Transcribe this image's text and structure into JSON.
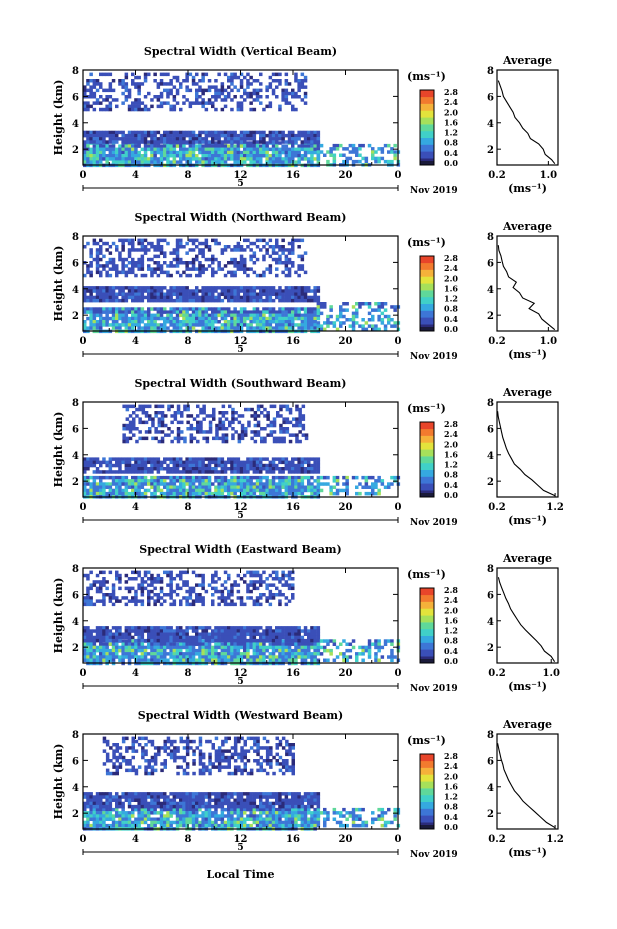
{
  "chart_data": [
    {
      "type": "heatmap",
      "title": "Spectral Width (Vertical Beam)",
      "ylabel": "Height (km)",
      "xlim": [
        0,
        24
      ],
      "ylim": [
        0.8,
        8
      ],
      "x_ticks": [
        "0",
        "4",
        "8",
        "12",
        "16",
        "20",
        "0"
      ],
      "y_ticks": [
        "2",
        "4",
        "6",
        "8"
      ],
      "date_mark": "5",
      "date_label": "Nov 2019",
      "colorbar": {
        "unit": "(ms⁻¹)",
        "ticks": [
          "0.0",
          "0.4",
          "0.8",
          "1.2",
          "1.6",
          "2.0",
          "2.4",
          "2.8"
        ]
      },
      "layers": [
        {
          "x": [
            0,
            17.8
          ],
          "y": [
            0.9,
            2.6
          ],
          "level": "mid"
        },
        {
          "x": [
            0,
            17.8
          ],
          "y": [
            2.6,
            3.4
          ],
          "level": "low"
        },
        {
          "x": [
            17.8,
            24
          ],
          "y": [
            0.9,
            2.4
          ],
          "level": "mid",
          "sparse": true
        },
        {
          "x": [
            0,
            17
          ],
          "y": [
            5.0,
            7.8
          ],
          "level": "low",
          "sparse": true
        }
      ],
      "profile": {
        "title": "Average",
        "xlabel": "(ms⁻¹)",
        "xticks": [
          "0.2",
          "1.0"
        ],
        "xlim": [
          0.2,
          1.15
        ],
        "yticks": [
          "2",
          "4",
          "6",
          "8"
        ],
        "heights": [
          0.9,
          1.2,
          1.6,
          2.0,
          2.4,
          2.8,
          3.2,
          3.6,
          4.0,
          4.4,
          4.8,
          5.2,
          5.6,
          6.0,
          6.4,
          6.8,
          7.2
        ],
        "values": [
          1.1,
          1.05,
          0.95,
          0.92,
          0.85,
          0.72,
          0.68,
          0.6,
          0.55,
          0.48,
          0.45,
          0.4,
          0.35,
          0.3,
          0.28,
          0.25,
          0.22
        ]
      }
    },
    {
      "type": "heatmap",
      "title": "Spectral Width (Northward Beam)",
      "ylabel": "Height (km)",
      "xlim": [
        0,
        24
      ],
      "ylim": [
        0.8,
        8
      ],
      "x_ticks": [
        "0",
        "4",
        "8",
        "12",
        "16",
        "20",
        "0"
      ],
      "y_ticks": [
        "2",
        "4",
        "6",
        "8"
      ],
      "date_mark": "5",
      "date_label": "Nov 2019",
      "colorbar": {
        "unit": "(ms⁻¹)",
        "ticks": [
          "0.0",
          "0.4",
          "0.8",
          "1.2",
          "1.6",
          "2.0",
          "2.4",
          "2.8"
        ]
      },
      "layers": [
        {
          "x": [
            0,
            17.8
          ],
          "y": [
            0.9,
            2.6
          ],
          "level": "mid"
        },
        {
          "x": [
            0,
            17.8
          ],
          "y": [
            3.0,
            4.2
          ],
          "level": "low"
        },
        {
          "x": [
            17.8,
            24
          ],
          "y": [
            1.0,
            3.0
          ],
          "level": "mid",
          "sparse": true
        },
        {
          "x": [
            0,
            17
          ],
          "y": [
            5.0,
            7.8
          ],
          "level": "low",
          "sparse": true
        }
      ],
      "profile": {
        "title": "Average",
        "xlabel": "(ms⁻¹)",
        "xticks": [
          "0.2",
          "1.0"
        ],
        "xlim": [
          0.2,
          1.15
        ],
        "yticks": [
          "2",
          "4",
          "6",
          "8"
        ],
        "heights": [
          0.9,
          1.3,
          1.7,
          2.1,
          2.5,
          2.9,
          3.3,
          3.7,
          4.1,
          4.5,
          4.9,
          5.3,
          5.7,
          6.1,
          6.5,
          6.9,
          7.3
        ],
        "values": [
          1.1,
          1.0,
          0.9,
          0.85,
          0.7,
          0.78,
          0.6,
          0.55,
          0.45,
          0.5,
          0.38,
          0.35,
          0.3,
          0.28,
          0.26,
          0.23,
          0.22
        ]
      }
    },
    {
      "type": "heatmap",
      "title": "Spectral Width (Southward Beam)",
      "ylabel": "Height (km)",
      "xlim": [
        0,
        24
      ],
      "ylim": [
        0.8,
        8
      ],
      "x_ticks": [
        "0",
        "4",
        "8",
        "12",
        "16",
        "20",
        "0"
      ],
      "y_ticks": [
        "2",
        "4",
        "6",
        "8"
      ],
      "date_mark": "5",
      "date_label": "Nov 2019",
      "colorbar": {
        "unit": "(ms⁻¹)",
        "ticks": [
          "0.0",
          "0.4",
          "0.8",
          "1.2",
          "1.6",
          "2.0",
          "2.4",
          "2.8"
        ]
      },
      "layers": [
        {
          "x": [
            0,
            17.8
          ],
          "y": [
            0.9,
            2.4
          ],
          "level": "mid"
        },
        {
          "x": [
            0,
            17.8
          ],
          "y": [
            2.8,
            3.8
          ],
          "level": "low"
        },
        {
          "x": [
            17.8,
            24
          ],
          "y": [
            1.0,
            2.4
          ],
          "level": "mid",
          "sparse": true
        },
        {
          "x": [
            3,
            17
          ],
          "y": [
            5.0,
            7.8
          ],
          "level": "low",
          "sparse": true
        }
      ],
      "profile": {
        "title": "Average",
        "xlabel": "(ms⁻¹)",
        "xticks": [
          "0.2",
          "1.2"
        ],
        "xlim": [
          0.2,
          1.25
        ],
        "yticks": [
          "2",
          "4",
          "6",
          "8"
        ],
        "heights": [
          0.9,
          1.3,
          1.7,
          2.1,
          2.5,
          2.9,
          3.3,
          3.7,
          4.1,
          4.5,
          4.9,
          5.3,
          5.7,
          6.1,
          6.5,
          6.9,
          7.3
        ],
        "values": [
          1.2,
          1.0,
          0.9,
          0.8,
          0.68,
          0.6,
          0.5,
          0.45,
          0.4,
          0.36,
          0.33,
          0.3,
          0.28,
          0.26,
          0.24,
          0.22,
          0.21
        ]
      }
    },
    {
      "type": "heatmap",
      "title": "Spectral Width (Eastward Beam)",
      "ylabel": "Height (km)",
      "xlim": [
        0,
        24
      ],
      "ylim": [
        0.8,
        8
      ],
      "x_ticks": [
        "0",
        "4",
        "8",
        "12",
        "16",
        "20",
        "0"
      ],
      "y_ticks": [
        "2",
        "4",
        "6",
        "8"
      ],
      "date_mark": "5",
      "date_label": "Nov 2019",
      "colorbar": {
        "unit": "(ms⁻¹)",
        "ticks": [
          "0.0",
          "0.4",
          "0.8",
          "1.2",
          "1.6",
          "2.0",
          "2.4",
          "2.8"
        ]
      },
      "layers": [
        {
          "x": [
            0,
            17.8
          ],
          "y": [
            0.9,
            2.6
          ],
          "level": "mid"
        },
        {
          "x": [
            0,
            17.8
          ],
          "y": [
            2.6,
            3.6
          ],
          "level": "low"
        },
        {
          "x": [
            17.8,
            24
          ],
          "y": [
            1.0,
            2.6
          ],
          "level": "mid",
          "sparse": true
        },
        {
          "x": [
            0,
            16
          ],
          "y": [
            5.2,
            7.8
          ],
          "level": "low",
          "sparse": true
        }
      ],
      "profile": {
        "title": "Average",
        "xlabel": "(ms⁻¹)",
        "xticks": [
          "0.2",
          "1.0"
        ],
        "xlim": [
          0.2,
          1.1
        ],
        "yticks": [
          "2",
          "4",
          "6",
          "8"
        ],
        "heights": [
          0.9,
          1.3,
          1.7,
          2.1,
          2.5,
          2.9,
          3.3,
          3.7,
          4.1,
          4.5,
          4.9,
          5.3,
          5.7,
          6.1,
          6.5,
          6.9,
          7.3
        ],
        "values": [
          1.05,
          1.0,
          0.9,
          0.85,
          0.78,
          0.7,
          0.62,
          0.55,
          0.5,
          0.45,
          0.4,
          0.37,
          0.33,
          0.3,
          0.27,
          0.24,
          0.22
        ]
      }
    },
    {
      "type": "heatmap",
      "title": "Spectral Width (Westward Beam)",
      "ylabel": "Height (km)",
      "xlim": [
        0,
        24
      ],
      "ylim": [
        0.8,
        8
      ],
      "x_ticks": [
        "0",
        "4",
        "8",
        "12",
        "16",
        "20",
        "0"
      ],
      "y_ticks": [
        "2",
        "4",
        "6",
        "8"
      ],
      "date_mark": "5",
      "date_label": "Nov 2019",
      "colorbar": {
        "unit": "(ms⁻¹)",
        "ticks": [
          "0.0",
          "0.4",
          "0.8",
          "1.2",
          "1.6",
          "2.0",
          "2.4",
          "2.8"
        ]
      },
      "layers": [
        {
          "x": [
            0,
            17.8
          ],
          "y": [
            0.9,
            2.4
          ],
          "level": "mid"
        },
        {
          "x": [
            0,
            17.8
          ],
          "y": [
            2.6,
            3.6
          ],
          "level": "low"
        },
        {
          "x": [
            17.8,
            24
          ],
          "y": [
            1.0,
            2.4
          ],
          "level": "mid",
          "sparse": true
        },
        {
          "x": [
            1.5,
            16
          ],
          "y": [
            5.0,
            7.8
          ],
          "level": "low",
          "sparse": true
        }
      ],
      "profile": {
        "title": "Average",
        "xlabel": "(ms⁻¹)",
        "xticks": [
          "0.2",
          "1.2"
        ],
        "xlim": [
          0.2,
          1.25
        ],
        "yticks": [
          "2",
          "4",
          "6",
          "8"
        ],
        "heights": [
          0.9,
          1.3,
          1.7,
          2.1,
          2.5,
          2.9,
          3.3,
          3.7,
          4.1,
          4.5,
          4.9,
          5.3,
          5.7,
          6.1,
          6.5,
          6.9,
          7.3
        ],
        "values": [
          1.2,
          1.05,
          0.95,
          0.85,
          0.75,
          0.65,
          0.58,
          0.5,
          0.45,
          0.4,
          0.36,
          0.32,
          0.3,
          0.27,
          0.25,
          0.23,
          0.21
        ]
      }
    }
  ],
  "shared_xlabel": "Local Time",
  "palette": [
    "#2b2b7a",
    "#3a4fb8",
    "#3d76d6",
    "#35a9e0",
    "#40d0c8",
    "#5fd89a",
    "#a6e05a",
    "#e3e33c",
    "#f5b13a",
    "#f27a2e",
    "#e8452a"
  ]
}
